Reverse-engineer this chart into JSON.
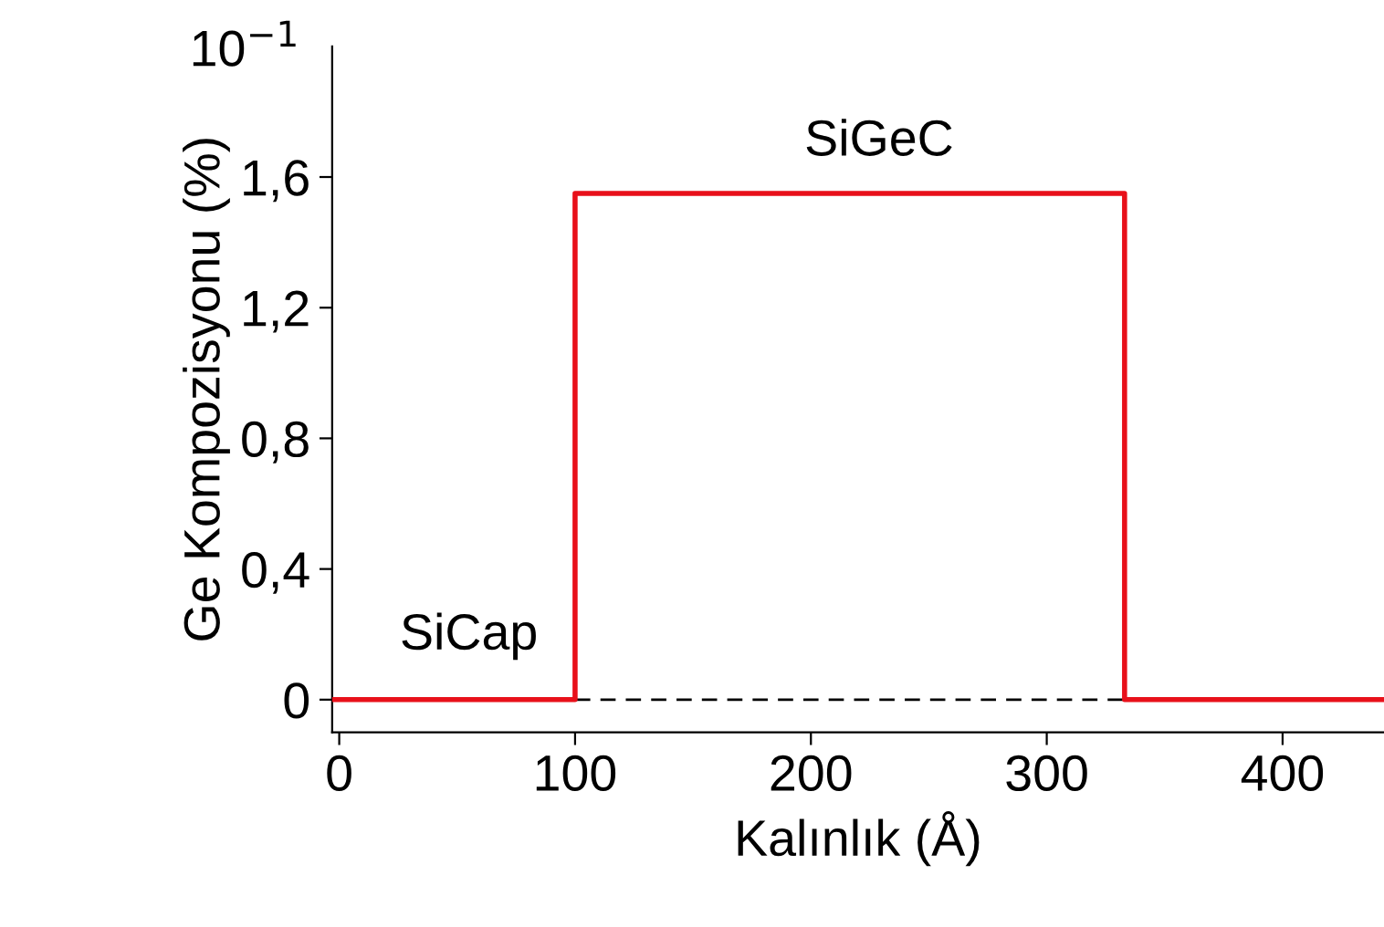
{
  "chart_data": {
    "type": "line",
    "xlabel": "Kalınlık (Å)",
    "ylabel": "Ge Kompozisyonu (%)",
    "xlim": [
      -3,
      443
    ],
    "xticks": [
      0,
      100,
      200,
      300,
      400
    ],
    "ylim": [
      -0.1,
      2.0
    ],
    "yticks": [
      0,
      {
        "value": 0.4,
        "label": "0,4"
      },
      {
        "value": 0.8,
        "label": "0,8"
      },
      {
        "value": 1.2,
        "label": "1,2"
      },
      {
        "value": 1.6,
        "label": "1,6"
      }
    ],
    "grid": false,
    "legend": false,
    "marker": "none",
    "series": [
      {
        "color": "#e8101a",
        "line_style": "solid",
        "x": [
          -3,
          100,
          100,
          333,
          333,
          443
        ],
        "values": [
          0,
          0,
          1.55,
          1.55,
          0,
          0
        ]
      },
      {
        "color": "#000000",
        "line_style": "dashed",
        "x": [
          100,
          333
        ],
        "values": [
          0,
          0
        ]
      }
    ],
    "annotations": [
      "10$^{−1}$",
      "SiCap",
      "SiGeC"
    ]
  }
}
